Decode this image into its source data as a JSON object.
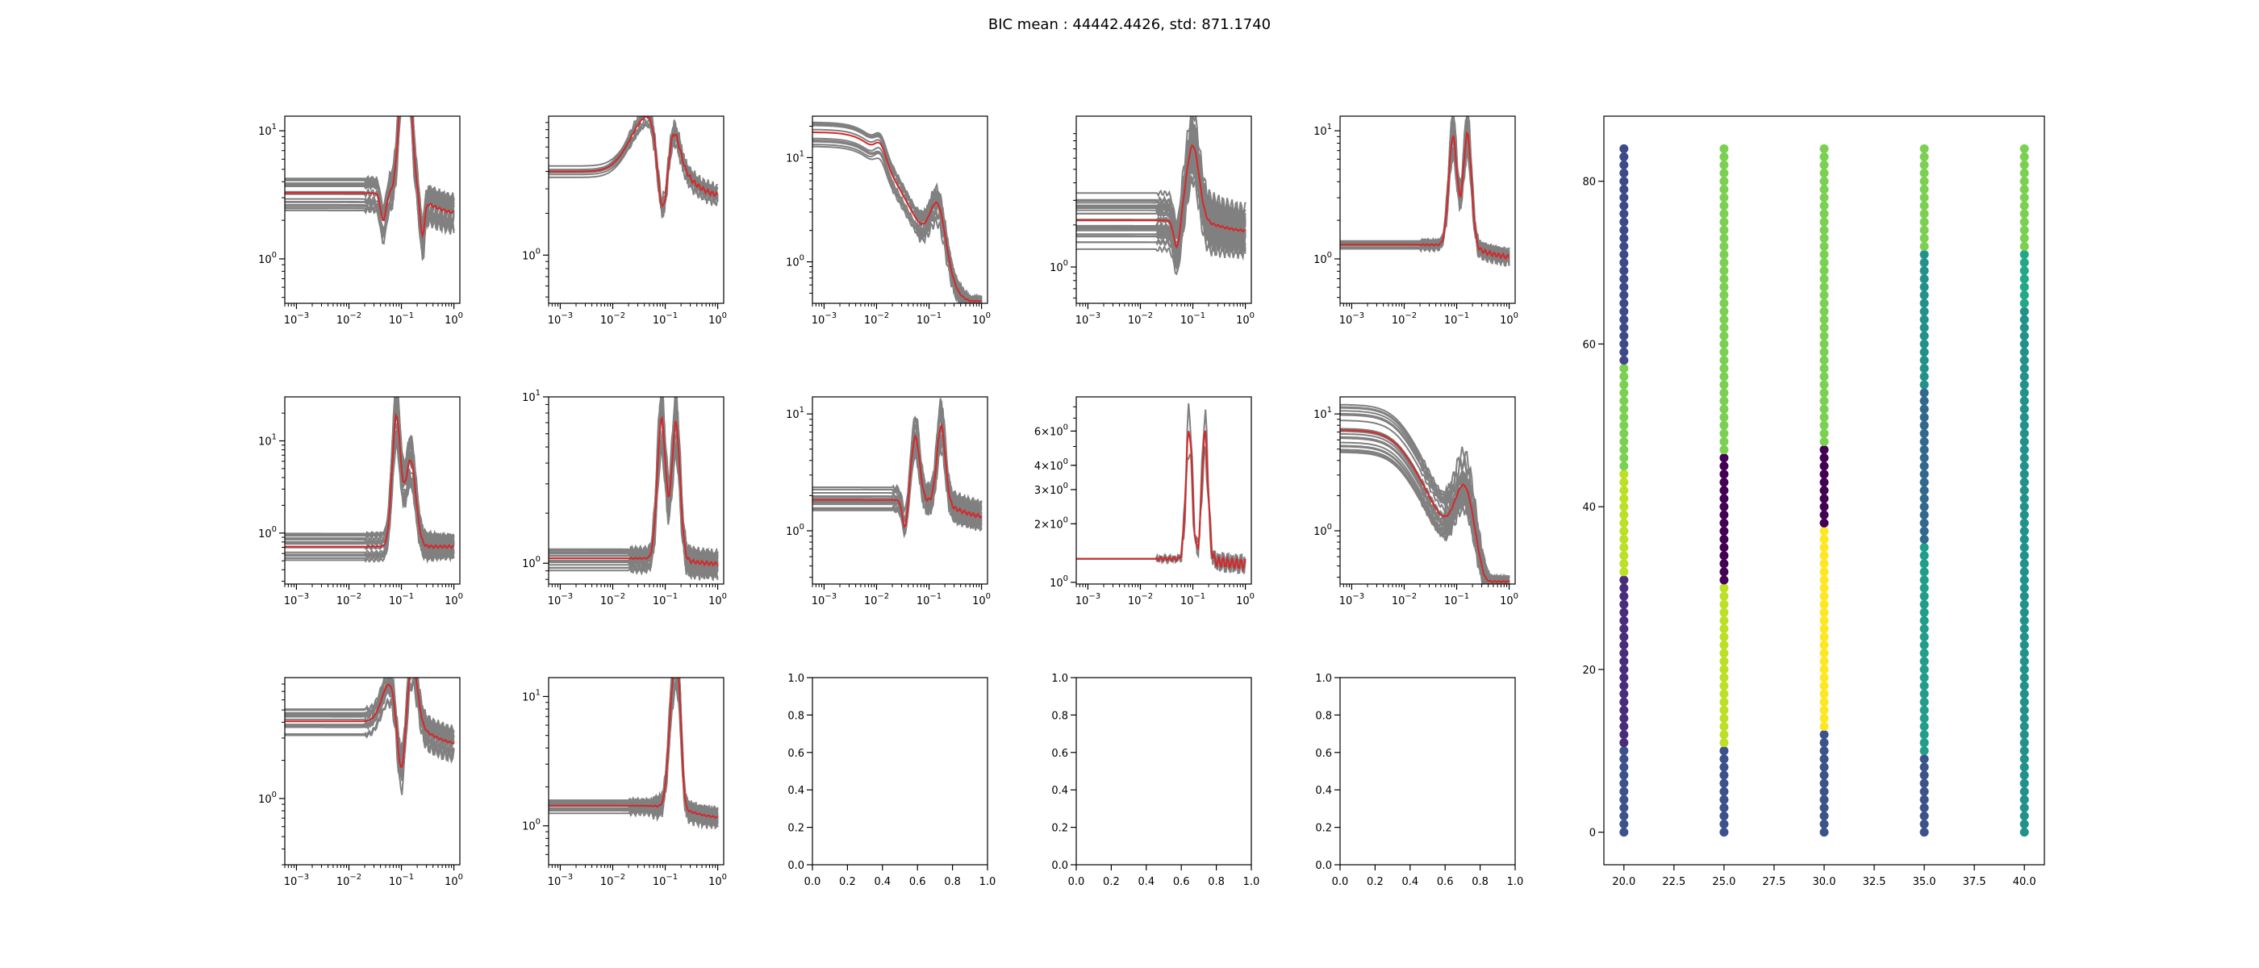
{
  "figure": {
    "title": "BIC mean : 44442.4426, std: 871.1740"
  },
  "colors": {
    "ensemble": "#808080",
    "mean": "#d62728"
  },
  "chart_data": [
    {
      "type": "line",
      "panel": "r1c1",
      "scale": "log-log",
      "xlim": [
        0.0006,
        1.3
      ],
      "ylim": [
        0.45,
        13
      ],
      "xticks": [
        "10^-3",
        "10^-2",
        "10^-1",
        "10^0"
      ],
      "yticks": [
        "10^0",
        "10^1"
      ],
      "n_curves": 20,
      "level": 3.0,
      "spread": 0.35,
      "peaks": [
        [
          0.12,
          3.2,
          0.1
        ],
        [
          0.045,
          -0.5,
          0.05
        ],
        [
          0.25,
          -0.7,
          0.04
        ]
      ],
      "tail": 0.6
    },
    {
      "type": "line",
      "panel": "r1c2",
      "scale": "log-log",
      "xlim": [
        0.0006,
        1.3
      ],
      "ylim": [
        0.45,
        10
      ],
      "xticks": [
        "10^-3",
        "10^-2",
        "10^-1",
        "10^0"
      ],
      "yticks": [
        "10^0"
      ],
      "n_curves": 8,
      "level": 4.0,
      "spread": 0.1,
      "peaks": [
        [
          0.05,
          1.0,
          0.35
        ],
        [
          0.14,
          0.5,
          0.12
        ],
        [
          0.09,
          -1.5,
          0.1
        ]
      ],
      "tail": 0.5
    },
    {
      "type": "line",
      "panel": "r1c3",
      "scale": "log-log",
      "xlim": [
        0.0006,
        1.3
      ],
      "ylim": [
        0.4,
        25
      ],
      "xticks": [
        "10^-3",
        "10^-2",
        "10^-1",
        "10^0"
      ],
      "yticks": [
        "10^0",
        "10^1"
      ],
      "n_curves": 12,
      "level": 17,
      "spread": 0.3,
      "decay": 0.008,
      "peaks": [
        [
          0.15,
          1.2,
          0.15
        ],
        [
          0.012,
          0.3,
          0.1
        ]
      ],
      "tail": 0.45
    },
    {
      "type": "line",
      "panel": "r1c4",
      "scale": "log-log",
      "xlim": [
        0.0006,
        1.3
      ],
      "ylim": [
        0.55,
        12
      ],
      "xticks": [
        "10^-3",
        "10^-2",
        "10^-1",
        "10^0"
      ],
      "yticks": [
        "10^0"
      ],
      "n_curves": 30,
      "level": 2.2,
      "spread": 0.5,
      "peaks": [
        [
          0.1,
          1.3,
          0.12
        ],
        [
          0.05,
          -0.5,
          0.06
        ]
      ],
      "tail": 1.2
    },
    {
      "type": "line",
      "panel": "r1c5",
      "scale": "log-log",
      "xlim": [
        0.0006,
        1.3
      ],
      "ylim": [
        0.45,
        13
      ],
      "xticks": [
        "10^-3",
        "10^-2",
        "10^-1",
        "10^0"
      ],
      "yticks": [
        "10^0",
        "10^1"
      ],
      "n_curves": 12,
      "level": 1.25,
      "spread": 0.1,
      "peaks": [
        [
          0.085,
          2.0,
          0.08
        ],
        [
          0.16,
          2.1,
          0.08
        ]
      ],
      "tail": 0.6
    },
    {
      "type": "line",
      "panel": "r2c1",
      "scale": "log-log",
      "xlim": [
        0.0006,
        1.3
      ],
      "ylim": [
        0.28,
        30
      ],
      "xticks": [
        "10^-3",
        "10^-2",
        "10^-1",
        "10^0"
      ],
      "yticks": [
        "10^0",
        "10^1"
      ],
      "n_curves": 20,
      "level": 0.7,
      "spread": 0.35,
      "peaks": [
        [
          0.08,
          3.2,
          0.08
        ],
        [
          0.15,
          2.2,
          0.1
        ]
      ],
      "tail": 0.7
    },
    {
      "type": "line",
      "panel": "r2c2",
      "scale": "log-log",
      "xlim": [
        0.0006,
        1.3
      ],
      "ylim": [
        0.75,
        10
      ],
      "xticks": [
        "10^-3",
        "10^-2",
        "10^-1",
        "10^0"
      ],
      "yticks": [
        "10^0",
        "10^1"
      ],
      "n_curves": 15,
      "level": 1.05,
      "spread": 0.15,
      "peaks": [
        [
          0.085,
          2.0,
          0.08
        ],
        [
          0.16,
          2.0,
          0.08
        ]
      ],
      "tail": 0.85
    },
    {
      "type": "line",
      "panel": "r2c3",
      "scale": "log-log",
      "xlim": [
        0.0006,
        1.3
      ],
      "ylim": [
        0.35,
        14
      ],
      "xticks": [
        "10^-3",
        "10^-2",
        "10^-1",
        "10^0"
      ],
      "yticks": [
        "10^0",
        "10^1"
      ],
      "n_curves": 15,
      "level": 2.0,
      "spread": 0.3,
      "peaks": [
        [
          0.055,
          1.3,
          0.08
        ],
        [
          0.17,
          1.6,
          0.08
        ],
        [
          0.035,
          -0.6,
          0.05
        ]
      ],
      "tail": 0.45
    },
    {
      "type": "line",
      "panel": "r2c4",
      "scale": "log-log",
      "xlim": [
        0.0006,
        1.3
      ],
      "ylim": [
        0.98,
        9
      ],
      "xticks": [
        "10^-3",
        "10^-2",
        "10^-1",
        "10^0"
      ],
      "yticks": [
        "10^0",
        "2x10^0",
        "3x10^0",
        "4x10^0",
        "6x10^0"
      ],
      "n_curves": 2,
      "level": 1.3,
      "spread": 0.02,
      "peaks": [
        [
          0.085,
          1.6,
          0.06
        ],
        [
          0.17,
          1.6,
          0.06
        ]
      ],
      "tail": 1.1
    },
    {
      "type": "line",
      "panel": "r2c5",
      "scale": "log-log",
      "xlim": [
        0.0006,
        1.3
      ],
      "ylim": [
        0.35,
        14
      ],
      "xticks": [
        "10^-3",
        "10^-2",
        "10^-1",
        "10^0"
      ],
      "yticks": [
        "10^0",
        "10^1"
      ],
      "n_curves": 22,
      "level": 7.5,
      "spread": 0.5,
      "decay": 0.008,
      "peaks": [
        [
          0.15,
          1.6,
          0.2
        ]
      ],
      "tail": 0.4
    },
    {
      "type": "line",
      "panel": "r3c1",
      "scale": "log-log",
      "xlim": [
        0.0006,
        1.3
      ],
      "ylim": [
        0.3,
        9
      ],
      "xticks": [
        "10^-3",
        "10^-2",
        "10^-1",
        "10^0"
      ],
      "yticks": [
        "10^0"
      ],
      "n_curves": 15,
      "level": 4.0,
      "spread": 0.25,
      "peaks": [
        [
          0.06,
          0.7,
          0.15
        ],
        [
          0.16,
          1.2,
          0.1
        ],
        [
          0.1,
          -1.2,
          0.08
        ]
      ],
      "tail": 0.45
    },
    {
      "type": "line",
      "panel": "r3c2",
      "scale": "log-log",
      "xlim": [
        0.0006,
        1.3
      ],
      "ylim": [
        0.5,
        14
      ],
      "xticks": [
        "10^-3",
        "10^-2",
        "10^-1",
        "10^0"
      ],
      "yticks": [
        "10^0",
        "10^1"
      ],
      "n_curves": 15,
      "level": 1.4,
      "spread": 0.12,
      "peaks": [
        [
          0.14,
          2.0,
          0.08
        ],
        [
          0.18,
          1.6,
          0.06
        ]
      ],
      "tail": 0.7
    },
    {
      "type": "empty",
      "panel": "r3c3",
      "xlim": [
        0,
        1
      ],
      "ylim": [
        0,
        1
      ],
      "xticks": [
        "0.0",
        "0.2",
        "0.4",
        "0.6",
        "0.8",
        "1.0"
      ],
      "yticks": [
        "0.0",
        "0.2",
        "0.4",
        "0.6",
        "0.8",
        "1.0"
      ]
    },
    {
      "type": "empty",
      "panel": "r3c4",
      "xlim": [
        0,
        1
      ],
      "ylim": [
        0,
        1
      ],
      "xticks": [
        "0.0",
        "0.2",
        "0.4",
        "0.6",
        "0.8",
        "1.0"
      ],
      "yticks": [
        "0.0",
        "0.2",
        "0.4",
        "0.6",
        "0.8",
        "1.0"
      ]
    },
    {
      "type": "empty",
      "panel": "r3c5",
      "xlim": [
        0,
        1
      ],
      "ylim": [
        0,
        1
      ],
      "xticks": [
        "0.0",
        "0.2",
        "0.4",
        "0.6",
        "0.8",
        "1.0"
      ],
      "yticks": [
        "0.0",
        "0.2",
        "0.4",
        "0.6",
        "0.8",
        "1.0"
      ]
    },
    {
      "type": "scatter",
      "panel": "cluster-assignments",
      "xlim": [
        19,
        41
      ],
      "ylim": [
        -4,
        88
      ],
      "xticks": [
        "20.0",
        "22.5",
        "25.0",
        "27.5",
        "30.0",
        "32.5",
        "35.0",
        "37.5",
        "40.0"
      ],
      "yticks": [
        "0",
        "20",
        "40",
        "60",
        "80"
      ],
      "columns": [
        {
          "x": 20,
          "segments": [
            [
              0,
              10,
              "#3b528b"
            ],
            [
              11,
              31,
              "#472d7b"
            ],
            [
              32,
              44,
              "#bddf26"
            ],
            [
              45,
              57,
              "#7ad151"
            ],
            [
              58,
              84,
              "#3e4989"
            ]
          ]
        },
        {
          "x": 25,
          "segments": [
            [
              0,
              10,
              "#3b528b"
            ],
            [
              11,
              30,
              "#bddf26"
            ],
            [
              31,
              46,
              "#440154"
            ],
            [
              47,
              84,
              "#7ad151"
            ]
          ]
        },
        {
          "x": 30,
          "segments": [
            [
              0,
              12,
              "#3b528b"
            ],
            [
              13,
              37,
              "#fde725"
            ],
            [
              38,
              47,
              "#440154"
            ],
            [
              48,
              84,
              "#7ad151"
            ]
          ]
        },
        {
          "x": 35,
          "segments": [
            [
              0,
              9,
              "#3b528b"
            ],
            [
              10,
              35,
              "#1f9e89"
            ],
            [
              36,
              54,
              "#31688e"
            ],
            [
              55,
              71,
              "#21918c"
            ],
            [
              72,
              84,
              "#7ad151"
            ]
          ]
        },
        {
          "x": 40,
          "segments": [
            [
              0,
              64,
              "#21918c"
            ],
            [
              65,
              71,
              "#22a884"
            ],
            [
              72,
              84,
              "#7ad151"
            ]
          ]
        }
      ]
    }
  ]
}
